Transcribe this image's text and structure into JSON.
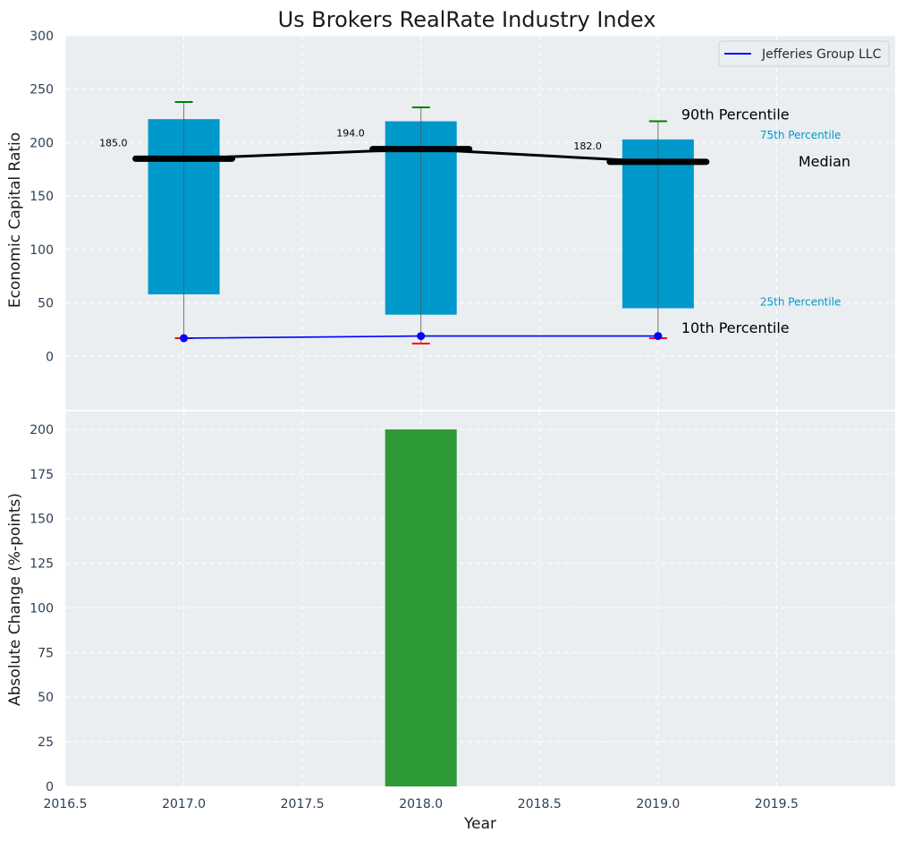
{
  "chart_data": [
    {
      "type": "box",
      "title": "Us Brokers RealRate Industry Index",
      "xlabel": "",
      "ylabel": "Economic Capital Ratio",
      "xlim": [
        2016.5,
        2020.0
      ],
      "ylim": [
        -50,
        300
      ],
      "yticks": [
        0,
        50,
        100,
        150,
        200,
        250,
        300
      ],
      "categories": [
        2017.0,
        2018.0,
        2019.0
      ],
      "box_color": "#0099cc",
      "boxes": [
        {
          "x": 2017.0,
          "p10": 17,
          "p25": 58,
          "median": 185.0,
          "p75": 222,
          "p90": 238,
          "median_label": "185.0"
        },
        {
          "x": 2018.0,
          "p10": 12,
          "p25": 39,
          "median": 194.0,
          "p75": 220,
          "p90": 233,
          "median_label": "194.0"
        },
        {
          "x": 2019.0,
          "p10": 17,
          "p25": 45,
          "median": 182.0,
          "p75": 203,
          "p90": 220,
          "median_label": "182.0"
        }
      ],
      "series": [
        {
          "name": "Jefferies Group LLC",
          "color": "#0000ff",
          "x": [
            2017.0,
            2018.0,
            2019.0
          ],
          "values": [
            17,
            19,
            19
          ]
        }
      ],
      "median_line_color": "#000000",
      "annotations": {
        "p90": "90th Percentile",
        "p75": "75th Percentile",
        "median": "Median",
        "p25": "25th Percentile",
        "p10": "10th Percentile"
      },
      "legend": "top-right",
      "grid": true
    },
    {
      "type": "bar",
      "xlabel": "Year",
      "ylabel": "Absolute Change (%-points)",
      "xlim": [
        2016.5,
        2020.0
      ],
      "ylim": [
        0,
        210
      ],
      "yticks": [
        0,
        25,
        50,
        75,
        100,
        125,
        150,
        175,
        200
      ],
      "xticks": [
        "2016.5",
        "2017.0",
        "2017.5",
        "2018.0",
        "2018.5",
        "2019.0",
        "2019.5"
      ],
      "x": [
        2018.0
      ],
      "values": [
        200
      ],
      "bar_color": "#2e9a35",
      "grid": true
    }
  ]
}
